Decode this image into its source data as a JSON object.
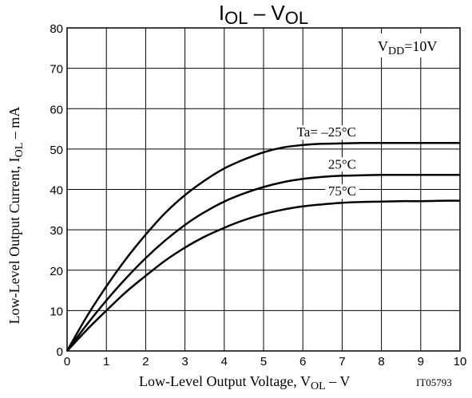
{
  "chart_data": {
    "type": "line",
    "title": {
      "main": "I",
      "main_sub": "OL",
      "dash": " – ",
      "var": "V",
      "var_sub": "OL"
    },
    "xlabel": {
      "pre": "Low-Level Output Voltage, V",
      "sub": "OL",
      "post": " – V"
    },
    "ylabel": {
      "pre": "Low-Level Output Current, I",
      "sub": "OL",
      "post": " – mA"
    },
    "xlim": [
      0,
      10
    ],
    "ylim": [
      0,
      80
    ],
    "x_ticks": [
      "0",
      "1",
      "2",
      "3",
      "4",
      "5",
      "6",
      "7",
      "8",
      "9",
      "10"
    ],
    "y_ticks": [
      "0",
      "10",
      "20",
      "30",
      "40",
      "50",
      "60",
      "70",
      "80"
    ],
    "grid": true,
    "condition": {
      "pre": "V",
      "sub": "DD",
      "post": "=10V"
    },
    "figure_id": "IT05793",
    "series": [
      {
        "name": "Ta= –25°C",
        "x": [
          0,
          0.5,
          1,
          1.5,
          2,
          2.5,
          3,
          3.5,
          4,
          4.5,
          5,
          5.5,
          6,
          6.5,
          7,
          7.5,
          8,
          8.5,
          9,
          9.5,
          10
        ],
        "y": [
          0,
          8.5,
          16,
          22.8,
          28.8,
          34.2,
          38.6,
          42.2,
          45.2,
          47.4,
          49.2,
          50.4,
          51.0,
          51.3,
          51.4,
          51.5,
          51.5,
          51.5,
          51.5,
          51.5,
          51.5
        ]
      },
      {
        "name": "25°C",
        "x": [
          0,
          0.5,
          1,
          1.5,
          2,
          2.5,
          3,
          3.5,
          4,
          4.5,
          5,
          5.5,
          6,
          6.5,
          7,
          7.5,
          8,
          8.5,
          9,
          9.5,
          10
        ],
        "y": [
          0,
          6.5,
          12.5,
          18.0,
          23.0,
          27.4,
          31.2,
          34.4,
          37.0,
          39.0,
          40.6,
          41.8,
          42.6,
          43.1,
          43.4,
          43.5,
          43.6,
          43.6,
          43.6,
          43.6,
          43.6
        ]
      },
      {
        "name": "75°C",
        "x": [
          0,
          0.5,
          1,
          1.5,
          2,
          2.5,
          3,
          3.5,
          4,
          4.5,
          5,
          5.5,
          6,
          6.5,
          7,
          7.5,
          8,
          8.5,
          9,
          9.5,
          10
        ],
        "y": [
          0,
          5.2,
          10.0,
          14.6,
          18.6,
          22.4,
          25.6,
          28.3,
          30.5,
          32.4,
          33.9,
          35.0,
          35.8,
          36.3,
          36.7,
          36.9,
          37.0,
          37.1,
          37.1,
          37.2,
          37.2
        ]
      }
    ]
  }
}
